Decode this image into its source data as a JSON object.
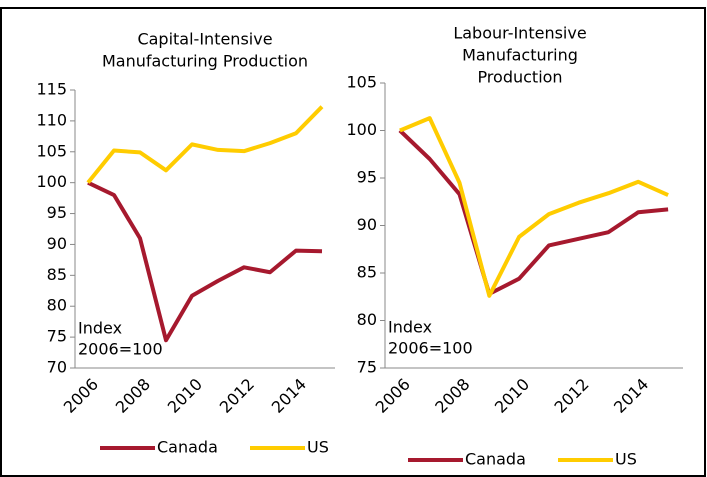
{
  "chart_data": [
    {
      "type": "line",
      "title": [
        "Capital-Intensive",
        "Manufacturing Production"
      ],
      "categories": [
        "2006",
        null,
        "2008",
        null,
        "2010",
        null,
        "2012",
        null,
        "2014",
        null
      ],
      "series": [
        {
          "name": "Canada",
          "color": "#a6192e",
          "values": [
            100,
            98,
            91,
            74.5,
            81.7,
            84.1,
            86.3,
            85.5,
            89,
            88.9
          ]
        },
        {
          "name": "US",
          "color": "#ffcc00",
          "values": [
            100,
            105.2,
            104.9,
            102,
            106.2,
            105.3,
            105.1,
            106.4,
            108,
            112.3
          ]
        }
      ],
      "ylim": [
        70,
        115
      ],
      "yticks": [
        70,
        75,
        80,
        85,
        90,
        95,
        100,
        105,
        110,
        115
      ],
      "annotation": [
        "Index",
        "2006=100"
      ],
      "grid": false,
      "legend": "bottom"
    },
    {
      "type": "line",
      "title": [
        "Labour-Intensive",
        "Manufacturing",
        "Production"
      ],
      "categories": [
        "2006",
        null,
        "2008",
        null,
        "2010",
        null,
        "2012",
        null,
        "2014",
        null
      ],
      "series": [
        {
          "name": "Canada",
          "color": "#a6192e",
          "values": [
            100,
            97,
            93.3,
            82.8,
            84.4,
            87.9,
            88.6,
            89.3,
            91.4,
            91.7
          ]
        },
        {
          "name": "US",
          "color": "#ffcc00",
          "values": [
            100,
            101.3,
            94.5,
            82.6,
            88.8,
            91.2,
            92.4,
            93.4,
            94.6,
            93.2
          ]
        }
      ],
      "ylim": [
        75,
        105
      ],
      "yticks": [
        75,
        80,
        85,
        90,
        95,
        100,
        105
      ],
      "annotation": [
        "Index",
        "2006=100"
      ],
      "grid": false,
      "legend": "bottom"
    }
  ]
}
